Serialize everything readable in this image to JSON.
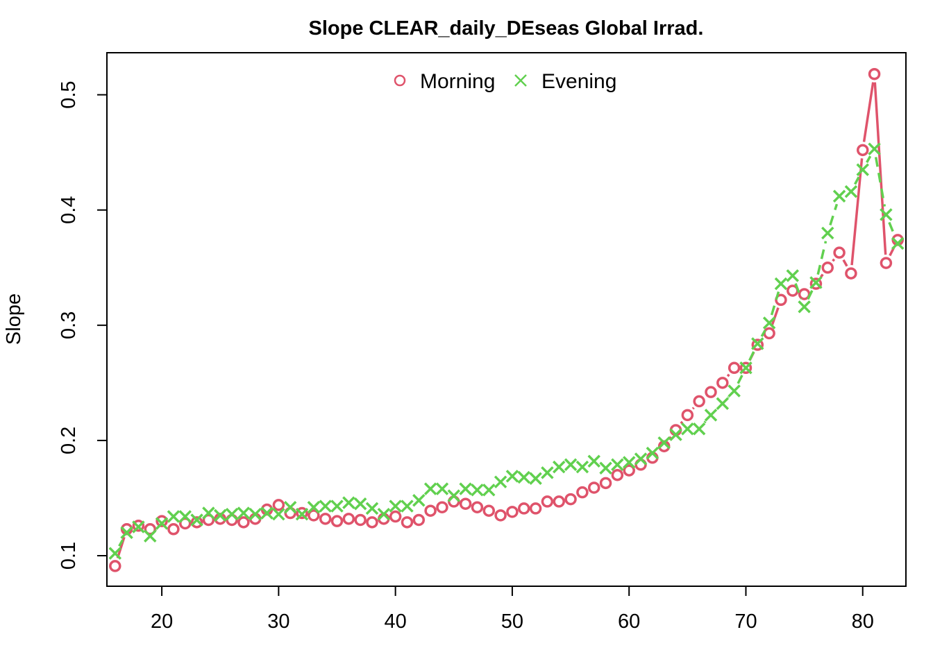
{
  "chart_data": {
    "type": "line",
    "title": "Slope CLEAR_daily_DEseas Global Irrad.",
    "xlabel": "",
    "ylabel": "Slope",
    "xlim": [
      15.3,
      83.7
    ],
    "ylim": [
      0.0735,
      0.5365
    ],
    "x_ticks": [
      20,
      30,
      40,
      50,
      60,
      70,
      80
    ],
    "x_tick_labels": [
      "20",
      "30",
      "40",
      "50",
      "60",
      "70",
      "80"
    ],
    "y_ticks": [
      0.1,
      0.2,
      0.3,
      0.4,
      0.5
    ],
    "y_tick_labels": [
      "0.1",
      "0.2",
      "0.3",
      "0.4",
      "0.5"
    ],
    "legend_position": "top-center",
    "grid": false,
    "x": [
      16,
      17,
      18,
      19,
      20,
      21,
      22,
      23,
      24,
      25,
      26,
      27,
      28,
      29,
      30,
      31,
      32,
      33,
      34,
      35,
      36,
      37,
      38,
      39,
      40,
      41,
      42,
      43,
      44,
      45,
      46,
      47,
      48,
      49,
      50,
      51,
      52,
      53,
      54,
      55,
      56,
      57,
      58,
      59,
      60,
      61,
      62,
      63,
      64,
      65,
      66,
      67,
      68,
      69,
      70,
      71,
      72,
      73,
      74,
      75,
      76,
      77,
      78,
      79,
      80,
      81,
      82,
      83
    ],
    "series": [
      {
        "name": "Morning",
        "color": "#df536b",
        "marker": "circle",
        "line_style": "solid",
        "values": [
          0.091,
          0.123,
          0.126,
          0.123,
          0.13,
          0.123,
          0.128,
          0.129,
          0.131,
          0.132,
          0.131,
          0.129,
          0.132,
          0.14,
          0.144,
          0.137,
          0.137,
          0.135,
          0.132,
          0.13,
          0.132,
          0.131,
          0.129,
          0.132,
          0.134,
          0.129,
          0.131,
          0.139,
          0.142,
          0.147,
          0.145,
          0.142,
          0.139,
          0.135,
          0.138,
          0.141,
          0.141,
          0.147,
          0.147,
          0.149,
          0.155,
          0.159,
          0.163,
          0.17,
          0.174,
          0.179,
          0.185,
          0.195,
          0.209,
          0.222,
          0.234,
          0.242,
          0.25,
          0.263,
          0.263,
          0.283,
          0.293,
          0.322,
          0.33,
          0.327,
          0.336,
          0.35,
          0.363,
          0.345,
          0.452,
          0.518,
          0.354,
          0.374
        ]
      },
      {
        "name": "Evening",
        "color": "#61d04f",
        "marker": "x",
        "line_style": "dashed",
        "values": [
          0.102,
          0.12,
          0.125,
          0.117,
          0.128,
          0.134,
          0.134,
          0.131,
          0.137,
          0.135,
          0.136,
          0.137,
          0.136,
          0.137,
          0.136,
          0.142,
          0.136,
          0.142,
          0.143,
          0.143,
          0.146,
          0.145,
          0.141,
          0.136,
          0.143,
          0.143,
          0.148,
          0.158,
          0.158,
          0.152,
          0.158,
          0.157,
          0.157,
          0.164,
          0.169,
          0.168,
          0.167,
          0.172,
          0.177,
          0.179,
          0.177,
          0.182,
          0.176,
          0.179,
          0.181,
          0.184,
          0.189,
          0.198,
          0.205,
          0.21,
          0.21,
          0.222,
          0.232,
          0.243,
          0.263,
          0.284,
          0.302,
          0.336,
          0.343,
          0.316,
          0.337,
          0.38,
          0.412,
          0.416,
          0.435,
          0.453,
          0.396,
          0.371
        ]
      }
    ]
  }
}
